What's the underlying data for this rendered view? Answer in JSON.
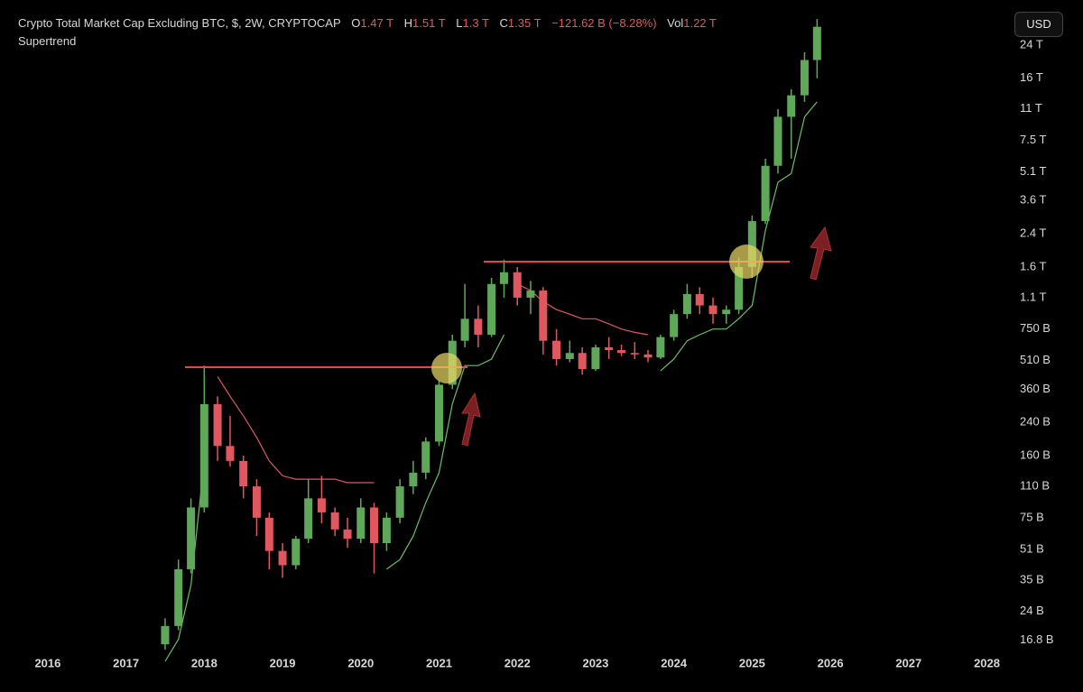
{
  "header": {
    "symbol": "Crypto Total Market Cap Excluding BTC, $, 2W, CRYPTOCAP",
    "o_label": "O",
    "o_value": "1.47 T",
    "h_label": "H",
    "h_value": "1.51 T",
    "l_label": "L",
    "l_value": "1.3 T",
    "c_label": "C",
    "c_value": "1.35 T",
    "change": "−121.62 B (−8.28%)",
    "vol_label": "Vol",
    "vol_value": "1.22 T",
    "indicator": "Supertrend",
    "currency": "USD"
  },
  "chart_data": {
    "type": "candlestick",
    "log_scale": true,
    "grid": false,
    "up_color": "#5fa85a",
    "down_color": "#e0575f",
    "xlim": [
      2015.39,
      2028.19
    ],
    "xticks": [
      2016,
      2017,
      2018,
      2019,
      2020,
      2021,
      2022,
      2023,
      2024,
      2025,
      2026,
      2027,
      2028
    ],
    "ylim": [
      15,
      41600
    ],
    "yticks": [
      {
        "value": 16.8,
        "label": "16.8 B"
      },
      {
        "value": 24,
        "label": "24 B"
      },
      {
        "value": 35,
        "label": "35 B"
      },
      {
        "value": 51,
        "label": "51 B"
      },
      {
        "value": 75,
        "label": "75 B"
      },
      {
        "value": 110,
        "label": "110 B"
      },
      {
        "value": 160,
        "label": "160 B"
      },
      {
        "value": 240,
        "label": "240 B"
      },
      {
        "value": 360,
        "label": "360 B"
      },
      {
        "value": 510,
        "label": "510 B"
      },
      {
        "value": 750,
        "label": "750 B"
      },
      {
        "value": 1100,
        "label": "1.1 T"
      },
      {
        "value": 1600,
        "label": "1.6 T"
      },
      {
        "value": 2400,
        "label": "2.4 T"
      },
      {
        "value": 3600,
        "label": "3.6 T"
      },
      {
        "value": 5100,
        "label": "5.1 T"
      },
      {
        "value": 7500,
        "label": "7.5 T"
      },
      {
        "value": 11000,
        "label": "11 T"
      },
      {
        "value": 16000,
        "label": "16 T"
      },
      {
        "value": 24000,
        "label": "24 T"
      }
    ],
    "x": [
      2017.5,
      2017.67,
      2017.83,
      2018.0,
      2018.17,
      2018.33,
      2018.5,
      2018.67,
      2018.83,
      2019.0,
      2019.17,
      2019.33,
      2019.5,
      2019.67,
      2019.83,
      2020.0,
      2020.17,
      2020.33,
      2020.5,
      2020.67,
      2020.83,
      2021.0,
      2021.17,
      2021.33,
      2021.5,
      2021.67,
      2021.83,
      2022.0,
      2022.17,
      2022.33,
      2022.5,
      2022.67,
      2022.83,
      2023.0,
      2023.17,
      2023.33,
      2023.5,
      2023.67,
      2023.83,
      2024.0,
      2024.17,
      2024.33,
      2024.5,
      2024.67,
      2024.83,
      2025.0,
      2025.17,
      2025.33,
      2025.5,
      2025.67,
      2025.83
    ],
    "open": [
      16,
      20,
      40,
      85,
      300,
      180,
      150,
      110,
      75,
      50,
      42,
      58,
      95,
      80,
      65,
      58,
      85,
      55,
      75,
      110,
      130,
      190,
      380,
      650,
      850,
      700,
      1300,
      1500,
      1100,
      1200,
      650,
      520,
      560,
      460,
      600,
      580,
      560,
      550,
      530,
      680,
      900,
      1150,
      1000,
      900,
      950,
      1600,
      2800,
      5500,
      10000,
      13000,
      20000
    ],
    "high": [
      22,
      45,
      95,
      480,
      330,
      260,
      160,
      120,
      80,
      55,
      60,
      120,
      125,
      85,
      75,
      95,
      90,
      80,
      120,
      150,
      200,
      400,
      700,
      1300,
      1000,
      1400,
      1750,
      1600,
      1350,
      1250,
      750,
      650,
      600,
      620,
      680,
      620,
      640,
      580,
      700,
      950,
      1300,
      1250,
      1100,
      1000,
      1800,
      3000,
      6000,
      11000,
      14000,
      22000,
      33000
    ],
    "low": [
      15,
      19,
      38,
      80,
      150,
      140,
      95,
      60,
      40,
      36,
      40,
      55,
      70,
      60,
      52,
      55,
      38,
      50,
      70,
      100,
      120,
      180,
      360,
      600,
      600,
      680,
      1100,
      1000,
      900,
      550,
      480,
      500,
      430,
      450,
      520,
      540,
      520,
      500,
      520,
      650,
      850,
      900,
      800,
      800,
      900,
      1400,
      2700,
      5000,
      6000,
      12000,
      16000
    ],
    "close": [
      20,
      40,
      85,
      300,
      180,
      150,
      110,
      75,
      50,
      42,
      58,
      95,
      80,
      65,
      58,
      85,
      55,
      75,
      110,
      130,
      190,
      380,
      650,
      850,
      700,
      1300,
      1500,
      1100,
      1200,
      650,
      520,
      560,
      460,
      600,
      580,
      560,
      550,
      530,
      680,
      900,
      1150,
      1000,
      900,
      950,
      1600,
      2800,
      5500,
      10000,
      13000,
      20000,
      30000
    ],
    "supertrend": {
      "up_color": "#6bbf62",
      "down_color": "#e0575f",
      "up": [
        13,
        17,
        33,
        150,
        null,
        null,
        null,
        null,
        null,
        null,
        null,
        null,
        null,
        null,
        null,
        null,
        null,
        40,
        45,
        60,
        90,
        130,
        300,
        480,
        480,
        520,
        700,
        null,
        null,
        null,
        null,
        null,
        null,
        null,
        null,
        null,
        null,
        null,
        450,
        520,
        650,
        700,
        750,
        750,
        850,
        1000,
        2500,
        4500,
        5000,
        10000,
        12000
      ],
      "down": [
        null,
        null,
        null,
        null,
        420,
        330,
        260,
        200,
        150,
        125,
        120,
        120,
        120,
        120,
        115,
        115,
        115,
        null,
        null,
        null,
        null,
        null,
        null,
        null,
        null,
        null,
        null,
        1300,
        1200,
        1050,
        950,
        900,
        850,
        850,
        800,
        750,
        720,
        700,
        null,
        null,
        null,
        null,
        null,
        null,
        null,
        null,
        null,
        null,
        null,
        null,
        null
      ]
    }
  }
}
